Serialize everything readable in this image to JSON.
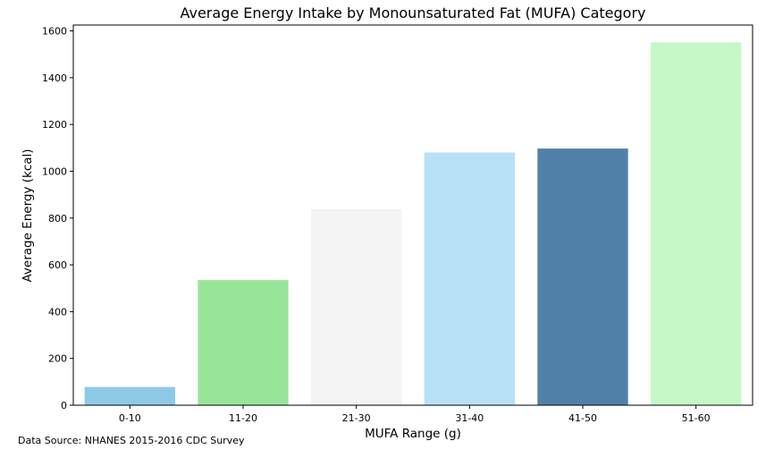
{
  "chart_data": {
    "type": "bar",
    "title": "Average Energy Intake by Monounsaturated Fat (MUFA) Category",
    "xlabel": "MUFA Range (g)",
    "ylabel": "Average Energy (kcal)",
    "categories": [
      "0-10",
      "11-20",
      "21-30",
      "31-40",
      "41-50",
      "51-60"
    ],
    "values": [
      78,
      535,
      838,
      1080,
      1097,
      1551
    ],
    "colors": [
      "#8ecae6",
      "#98e59a",
      "#f4f4f4",
      "#b8e0f7",
      "#5080a8",
      "#c6f7c6"
    ],
    "ylim": [
      0,
      1625
    ],
    "yticks": [
      0,
      200,
      400,
      600,
      800,
      1000,
      1200,
      1400,
      1600
    ],
    "grid": false,
    "legend": "none"
  },
  "footnote": "Data Source: NHANES 2015-2016 CDC Survey"
}
